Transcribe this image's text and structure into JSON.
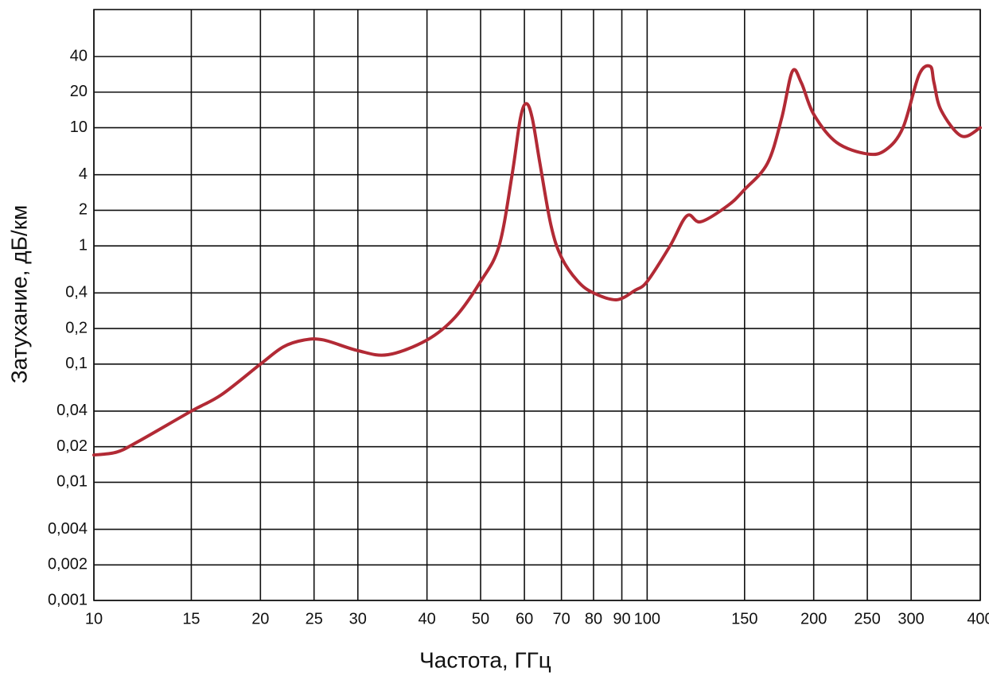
{
  "chart_data": {
    "type": "line",
    "x_label": "Частота, ГГц",
    "y_label": "Затухание, дБ/км",
    "xscale": "log",
    "yscale": "log",
    "grid": true,
    "xlim": [
      10,
      400
    ],
    "ylim": [
      0.001,
      100
    ],
    "xticks": [
      10,
      15,
      20,
      25,
      30,
      40,
      50,
      60,
      70,
      80,
      90,
      100,
      150,
      200,
      250,
      300,
      400
    ],
    "yticks": [
      {
        "value": 0.001,
        "label": "0,001"
      },
      {
        "value": 0.002,
        "label": "0,002"
      },
      {
        "value": 0.004,
        "label": "0,004"
      },
      {
        "value": 0.01,
        "label": "0,01"
      },
      {
        "value": 0.02,
        "label": "0,02"
      },
      {
        "value": 0.04,
        "label": "0,04"
      },
      {
        "value": 0.1,
        "label": "0,1"
      },
      {
        "value": 0.2,
        "label": "0,2"
      },
      {
        "value": 0.4,
        "label": "0,4"
      },
      1,
      2,
      4,
      10,
      20,
      40
    ],
    "x": [
      10,
      11,
      12,
      15,
      17,
      20,
      22,
      24,
      26,
      30,
      34,
      40,
      45,
      50,
      54,
      57,
      59,
      60.5,
      62,
      64,
      67,
      70,
      75,
      80,
      88,
      95,
      100,
      110,
      118,
      125,
      140,
      150,
      165,
      175,
      183,
      190,
      200,
      220,
      250,
      270,
      290,
      310,
      325,
      330,
      340,
      370,
      400
    ],
    "series": [
      {
        "color": "#b22a35",
        "values": [
          0.017,
          0.018,
          0.022,
          0.04,
          0.055,
          0.1,
          0.14,
          0.16,
          0.16,
          0.13,
          0.12,
          0.16,
          0.25,
          0.5,
          1.0,
          4,
          12,
          16,
          12,
          5,
          1.5,
          0.8,
          0.5,
          0.4,
          0.35,
          0.42,
          0.5,
          1.0,
          1.8,
          1.6,
          2.2,
          3,
          5,
          12,
          30,
          24,
          13,
          7.5,
          6,
          6.5,
          10,
          28,
          33,
          24,
          14,
          8.5,
          10
        ]
      }
    ]
  }
}
